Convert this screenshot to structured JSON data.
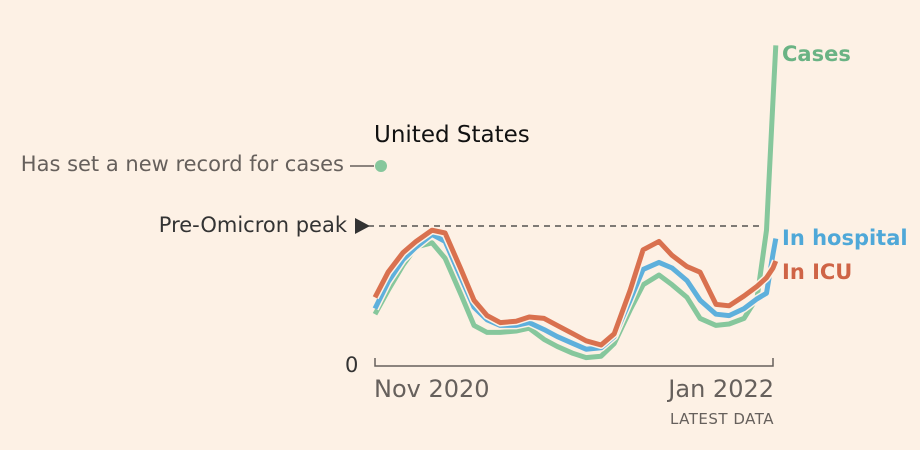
{
  "chart_data": {
    "type": "line",
    "title": "United States",
    "subtitle": "Has set a new record for cases",
    "annotation": "Pre-Omicron peak",
    "annotation_value": 1,
    "xlabel": "",
    "ylabel": "",
    "x_ticks": [
      "Nov 2020",
      "Jan 2022"
    ],
    "x_tick_dates": [
      "2020-11-01",
      "2022-01-01"
    ],
    "x_note": "LATEST DATA",
    "y_ticks": [
      "0"
    ],
    "ylim": [
      0,
      2.3
    ],
    "grid": false,
    "legend": "direct labels at line ends",
    "x": [
      "2020-11-01",
      "2020-11-15",
      "2020-12-01",
      "2020-12-15",
      "2021-01-01",
      "2021-01-15",
      "2021-02-01",
      "2021-02-15",
      "2021-03-01",
      "2021-03-15",
      "2021-04-01",
      "2021-04-15",
      "2021-05-01",
      "2021-05-15",
      "2021-06-01",
      "2021-06-15",
      "2021-07-01",
      "2021-07-15",
      "2021-08-01",
      "2021-08-15",
      "2021-09-01",
      "2021-09-15",
      "2021-10-01",
      "2021-10-15",
      "2021-11-01",
      "2021-11-15",
      "2021-12-01",
      "2021-12-15",
      "2021-12-25",
      "2022-01-01",
      "2022-01-04"
    ],
    "series": [
      {
        "name": "Cases",
        "color": "#86c79c",
        "label_color": "#6ab384",
        "values": [
          0.37,
          0.54,
          0.72,
          0.85,
          0.88,
          0.77,
          0.51,
          0.29,
          0.24,
          0.24,
          0.25,
          0.27,
          0.19,
          0.14,
          0.09,
          0.06,
          0.07,
          0.16,
          0.4,
          0.58,
          0.65,
          0.58,
          0.49,
          0.34,
          0.29,
          0.3,
          0.34,
          0.49,
          0.97,
          1.9,
          2.29
        ]
      },
      {
        "name": "In hospital",
        "color": "#5eb0dc",
        "label_color": "#4fa8d8",
        "values": [
          0.41,
          0.6,
          0.76,
          0.85,
          0.94,
          0.89,
          0.63,
          0.42,
          0.33,
          0.29,
          0.29,
          0.31,
          0.26,
          0.21,
          0.16,
          0.12,
          0.13,
          0.21,
          0.47,
          0.69,
          0.74,
          0.7,
          0.61,
          0.47,
          0.37,
          0.36,
          0.41,
          0.48,
          0.52,
          0.8,
          0.91
        ]
      },
      {
        "name": "In ICU",
        "color": "#d9714f",
        "label_color": "#cf6446",
        "values": [
          0.49,
          0.67,
          0.81,
          0.89,
          0.97,
          0.95,
          0.69,
          0.47,
          0.36,
          0.31,
          0.32,
          0.35,
          0.34,
          0.29,
          0.23,
          0.18,
          0.15,
          0.23,
          0.54,
          0.83,
          0.89,
          0.79,
          0.71,
          0.67,
          0.44,
          0.43,
          0.5,
          0.57,
          0.63,
          0.7,
          0.75
        ]
      }
    ]
  }
}
